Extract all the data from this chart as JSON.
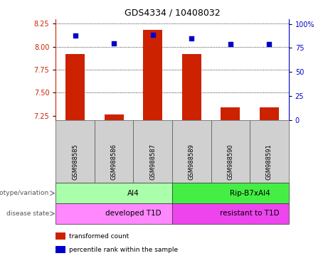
{
  "title": "GDS4334 / 10408032",
  "samples": [
    "GSM988585",
    "GSM988586",
    "GSM988587",
    "GSM988589",
    "GSM988590",
    "GSM988591"
  ],
  "bar_values": [
    7.92,
    7.26,
    8.18,
    7.92,
    7.34,
    7.34
  ],
  "percentile_values": [
    88,
    80,
    89,
    85,
    79,
    79
  ],
  "bar_color": "#cc2200",
  "percentile_color": "#0000cc",
  "ylim_left": [
    7.2,
    8.3
  ],
  "ylim_right": [
    0,
    105
  ],
  "yticks_left": [
    7.25,
    7.5,
    7.75,
    8.0,
    8.25
  ],
  "yticks_right": [
    0,
    25,
    50,
    75,
    100
  ],
  "ytick_labels_right": [
    "0",
    "25",
    "50",
    "75",
    "100%"
  ],
  "grid_values": [
    7.5,
    7.75,
    8.0,
    8.25
  ],
  "genotype_groups": [
    {
      "label": "AI4",
      "start": 0,
      "end": 3,
      "color": "#aaffaa"
    },
    {
      "label": "Rip-B7xAI4",
      "start": 3,
      "end": 6,
      "color": "#44ee44"
    }
  ],
  "disease_groups": [
    {
      "label": "developed T1D",
      "start": 0,
      "end": 3,
      "color": "#ff88ff"
    },
    {
      "label": "resistant to T1D",
      "start": 3,
      "end": 6,
      "color": "#ee44ee"
    }
  ],
  "genotype_label": "genotype/variation",
  "disease_label": "disease state",
  "legend_items": [
    {
      "label": "transformed count",
      "color": "#cc2200"
    },
    {
      "label": "percentile rank within the sample",
      "color": "#0000cc"
    }
  ],
  "background_color": "#ffffff",
  "bar_width": 0.5,
  "base_value": 7.2,
  "sample_box_color": "#d0d0d0"
}
